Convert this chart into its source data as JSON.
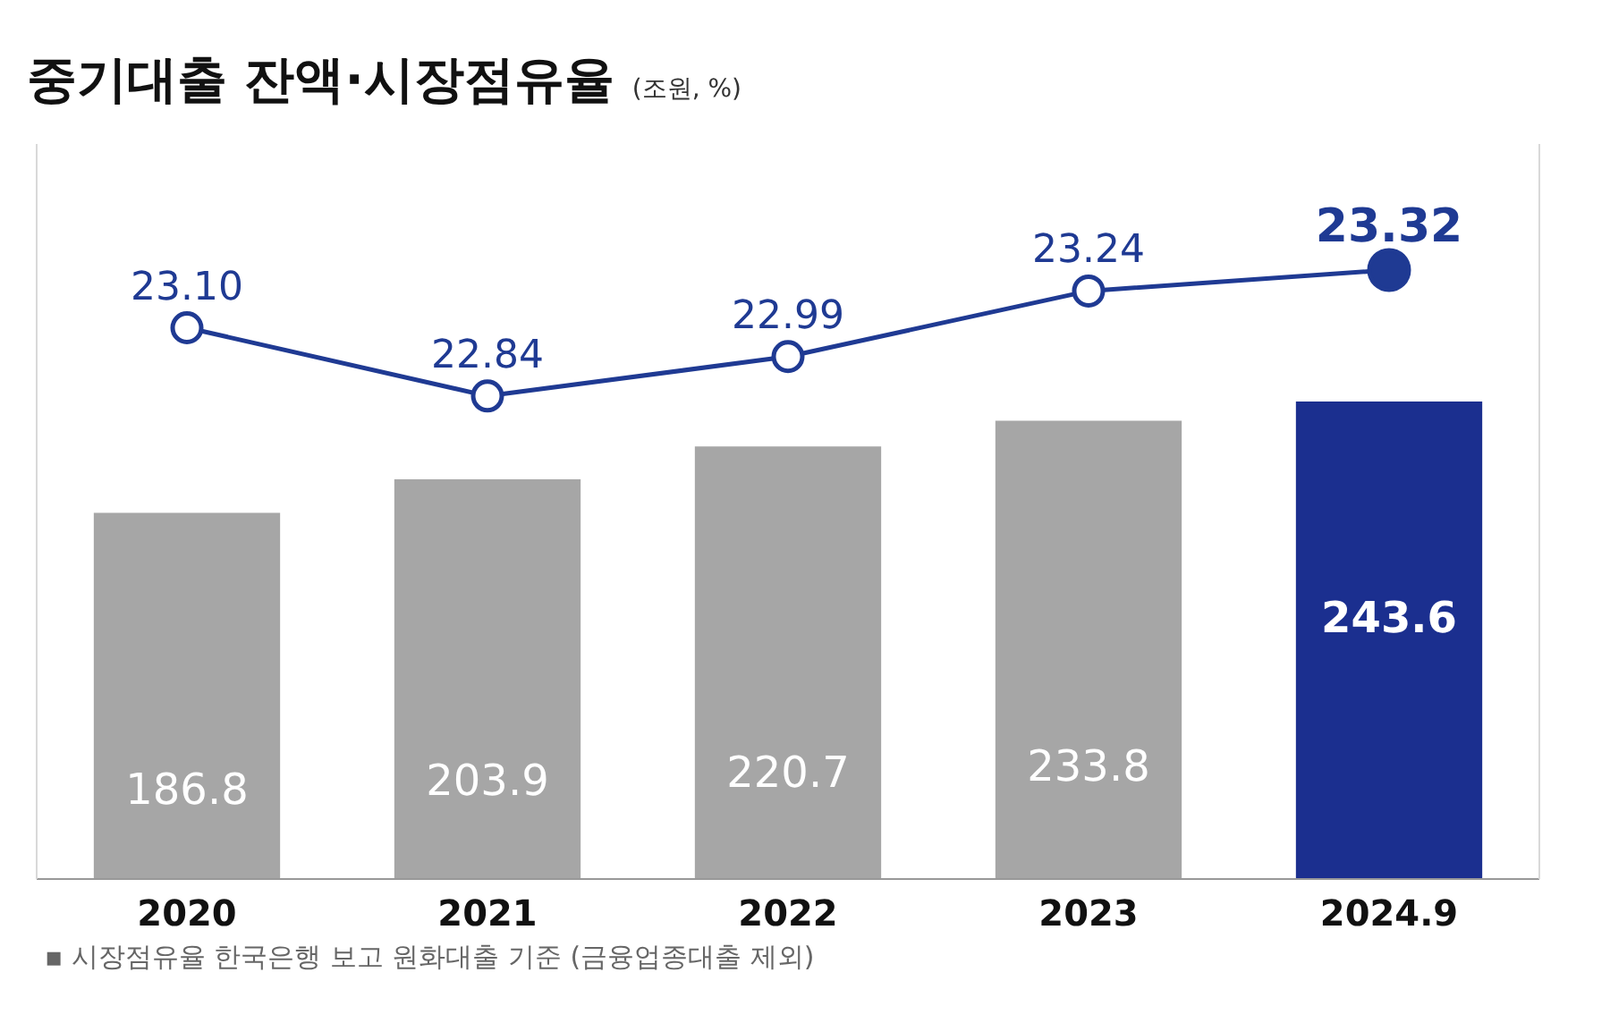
{
  "chart_data": {
    "type": "bar",
    "title": "중기대출 잔액·시장점유율",
    "subtitle": "(조원, %)",
    "categories": [
      "2020",
      "2021",
      "2022",
      "2023",
      "2024.9"
    ],
    "series": [
      {
        "values": [
          186.8,
          203.9,
          220.7,
          233.8,
          243.6
        ],
        "colors": [
          "#a6a6a6",
          "#a6a6a6",
          "#a6a6a6",
          "#a6a6a6",
          "#1b2f8f"
        ]
      },
      {
        "type": "line",
        "axis": "y2",
        "values": [
          23.1,
          22.84,
          22.99,
          23.24,
          23.32
        ],
        "color": "#1f3a93",
        "value_labels": [
          "23.10",
          "22.84",
          "22.99",
          "23.24",
          "23.32"
        ]
      }
    ],
    "ylim": [
      0,
      375
    ],
    "y2lim": [
      21,
      23.8
    ],
    "data_labels": true,
    "marker": "circle",
    "line_style": "solid",
    "grid": false,
    "tick_labels": "x",
    "annotations": [
      "▪ 시장점유율 한국은행 보고 원화대출 기준 (금융업종대출 제외)"
    ]
  }
}
